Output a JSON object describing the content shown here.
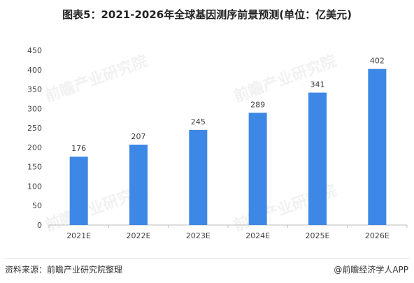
{
  "title": "图表5：2021-2026年全球基因测序前景预测(单位：亿美元)",
  "footer": {
    "source": "资料来源：前瞻产业研究院整理",
    "credit": "@前瞻经济学人APP"
  },
  "watermark": "前瞻产业研究院",
  "colors": {
    "bar": "#3D87E6",
    "axis": "#bfbfbf",
    "text": "#404040"
  },
  "chart_data": {
    "type": "bar",
    "title": "图表5：2021-2026年全球基因测序前景预测(单位：亿美元)",
    "categories": [
      "2021E",
      "2022E",
      "2023E",
      "2024E",
      "2025E",
      "2026E"
    ],
    "values": [
      176,
      207,
      245,
      289,
      341,
      402
    ],
    "yticks": [
      0,
      50,
      100,
      150,
      200,
      250,
      300,
      350,
      400,
      450
    ],
    "ylim": [
      0,
      450
    ],
    "grid": false,
    "legend": "none"
  }
}
